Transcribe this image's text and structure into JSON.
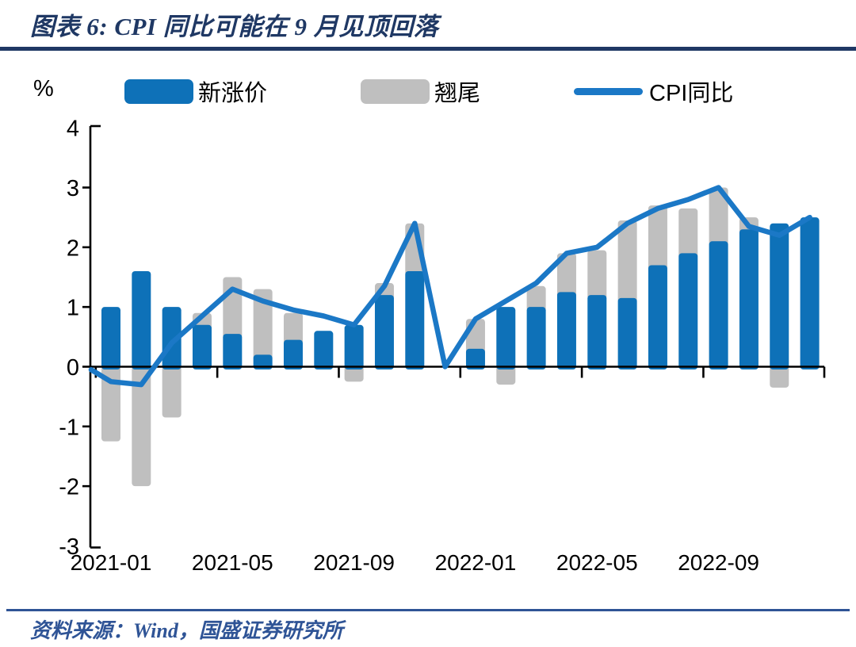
{
  "page": {
    "title": "图表 6:  CPI 同比可能在 9 月见顶回落",
    "y_axis_unit": "%",
    "source_note": "资料来源：Wind，国盛证券研究所"
  },
  "legend": {
    "items": [
      {
        "label": "新涨价",
        "type": "bar",
        "color": "#0E71B8"
      },
      {
        "label": "翘尾",
        "type": "bar",
        "color": "#BFBFBF"
      },
      {
        "label": "CPI同比",
        "type": "line",
        "color": "#1B78C6"
      }
    ]
  },
  "colors": {
    "bar_new_price": "#0E71B8",
    "bar_carryover": "#BFBFBF",
    "cpi_line": "#1B78C6",
    "title_navy": "#1F3864",
    "footer_blue": "#2F5496",
    "axis": "#000000"
  },
  "chart_data": {
    "type": "bar",
    "subtype": "stacked-bar-with-line",
    "title": "CPI 同比可能在 9 月见顶回落",
    "ylabel": "%",
    "ylim": [
      -3,
      4
    ],
    "y_ticks": [
      4,
      3,
      2,
      1,
      0,
      -1,
      -2,
      -3
    ],
    "grid": false,
    "legend_position": "top",
    "categories": [
      "2021-01",
      "2021-02",
      "2021-03",
      "2021-04",
      "2021-05",
      "2021-06",
      "2021-07",
      "2021-08",
      "2021-09",
      "2021-10",
      "2021-11",
      "2021-12",
      "2022-01",
      "2022-02",
      "2022-03",
      "2022-04",
      "2022-05",
      "2022-06",
      "2022-07",
      "2022-08",
      "2022-09",
      "2022-10",
      "2022-11",
      "2022-12"
    ],
    "x_tick_labels": [
      "2021-01",
      "2021-05",
      "2021-09",
      "2022-01",
      "2022-05",
      "2022-09"
    ],
    "x_tick_month_indices": [
      0,
      4,
      8,
      12,
      16,
      20
    ],
    "series": [
      {
        "name": "新涨价",
        "kind": "bar",
        "color": "#0E71B8",
        "values": [
          1.0,
          1.6,
          1.0,
          0.7,
          0.55,
          0.2,
          0.45,
          0.6,
          0.7,
          1.2,
          1.6,
          0,
          0.3,
          1.0,
          1.0,
          1.25,
          1.2,
          1.15,
          1.7,
          1.9,
          2.1,
          2.3,
          2.4,
          2.5
        ]
      },
      {
        "name": "翘尾",
        "kind": "bar",
        "color": "#BFBFBF",
        "values": [
          -1.25,
          -2.0,
          -0.85,
          0.2,
          0.95,
          1.1,
          0.45,
          0,
          -0.25,
          0.2,
          0.8,
          0,
          0.5,
          -0.3,
          0.35,
          0.65,
          0.75,
          1.3,
          1.0,
          0.75,
          0.9,
          0.2,
          -0.35,
          0
        ]
      },
      {
        "name": "CPI同比",
        "kind": "line",
        "color": "#1B78C6",
        "lead_in_value": -0.05,
        "values": [
          -0.25,
          -0.3,
          0.4,
          0.85,
          1.3,
          1.1,
          0.95,
          0.85,
          0.7,
          1.35,
          2.4,
          0.0,
          0.8,
          1.1,
          1.4,
          1.9,
          2.0,
          2.4,
          2.65,
          2.8,
          3.0,
          2.35,
          2.2,
          2.5
        ]
      }
    ]
  }
}
